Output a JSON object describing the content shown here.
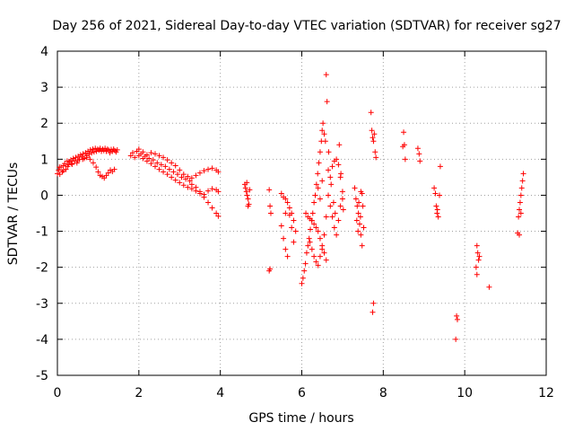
{
  "chart_data": {
    "type": "scatter",
    "title": "Day 256 of 2021, Sidereal Day-to-day VTEC variation (SDTVAR) for receiver sg27",
    "xlabel": "GPS time / hours",
    "ylabel": "SDTVAR / TECUs",
    "xlim": [
      0,
      12
    ],
    "ylim": [
      -5,
      4
    ],
    "xticks": [
      0,
      2,
      4,
      6,
      8,
      10,
      12
    ],
    "yticks": [
      -5,
      -4,
      -3,
      -2,
      -1,
      0,
      1,
      2,
      3,
      4
    ],
    "grid": true,
    "marker": "+",
    "color": "#ff0000",
    "series": [
      {
        "name": "sg27",
        "points": [
          [
            0.0,
            0.6
          ],
          [
            0.03,
            0.7
          ],
          [
            0.06,
            0.58
          ],
          [
            0.09,
            0.78
          ],
          [
            0.12,
            0.65
          ],
          [
            0.15,
            0.82
          ],
          [
            0.18,
            0.88
          ],
          [
            0.21,
            0.72
          ],
          [
            0.24,
            0.95
          ],
          [
            0.27,
            0.85
          ],
          [
            0.3,
            0.93
          ],
          [
            0.33,
            0.98
          ],
          [
            0.36,
            0.86
          ],
          [
            0.39,
            1.02
          ],
          [
            0.42,
            0.95
          ],
          [
            0.45,
            1.05
          ],
          [
            0.48,
            0.9
          ],
          [
            0.51,
            1.08
          ],
          [
            0.54,
            1.0
          ],
          [
            0.57,
            1.12
          ],
          [
            0.6,
            1.06
          ],
          [
            0.63,
            1.15
          ],
          [
            0.66,
            1.02
          ],
          [
            0.69,
            1.18
          ],
          [
            0.72,
            1.1
          ],
          [
            0.75,
            1.22
          ],
          [
            0.78,
            1.14
          ],
          [
            0.81,
            1.26
          ],
          [
            0.84,
            1.18
          ],
          [
            0.87,
            1.28
          ],
          [
            0.9,
            1.2
          ],
          [
            0.93,
            1.3
          ],
          [
            0.96,
            1.22
          ],
          [
            0.99,
            1.28
          ],
          [
            1.02,
            1.25
          ],
          [
            1.05,
            1.3
          ],
          [
            1.08,
            1.22
          ],
          [
            1.11,
            1.28
          ],
          [
            1.14,
            1.24
          ],
          [
            1.17,
            1.3
          ],
          [
            1.2,
            1.22
          ],
          [
            1.23,
            1.28
          ],
          [
            1.26,
            1.25
          ],
          [
            1.29,
            1.18
          ],
          [
            1.32,
            1.27
          ],
          [
            1.35,
            1.22
          ],
          [
            1.38,
            1.28
          ],
          [
            1.41,
            1.24
          ],
          [
            1.44,
            1.2
          ],
          [
            1.47,
            1.26
          ],
          [
            0.05,
            0.78
          ],
          [
            0.15,
            0.68
          ],
          [
            0.25,
            0.8
          ],
          [
            0.35,
            0.88
          ],
          [
            0.5,
            0.96
          ],
          [
            0.62,
            1.0
          ],
          [
            0.72,
            1.05
          ],
          [
            0.8,
            1.0
          ],
          [
            0.88,
            0.9
          ],
          [
            0.95,
            0.78
          ],
          [
            1.0,
            0.65
          ],
          [
            1.05,
            0.55
          ],
          [
            1.1,
            0.52
          ],
          [
            1.15,
            0.48
          ],
          [
            1.2,
            0.55
          ],
          [
            1.25,
            0.62
          ],
          [
            1.3,
            0.7
          ],
          [
            1.35,
            0.66
          ],
          [
            1.4,
            0.72
          ],
          [
            1.8,
            1.1
          ],
          [
            1.85,
            1.18
          ],
          [
            1.9,
            1.05
          ],
          [
            1.95,
            1.22
          ],
          [
            2.0,
            1.28
          ],
          [
            2.05,
            1.15
          ],
          [
            2.1,
            1.2
          ],
          [
            2.15,
            1.08
          ],
          [
            2.2,
            1.12
          ],
          [
            2.25,
            1.02
          ],
          [
            2.3,
            1.18
          ],
          [
            2.35,
            0.98
          ],
          [
            2.4,
            1.15
          ],
          [
            2.45,
            0.9
          ],
          [
            2.5,
            1.1
          ],
          [
            2.55,
            0.85
          ],
          [
            2.6,
            1.05
          ],
          [
            2.65,
            0.8
          ],
          [
            2.7,
            0.98
          ],
          [
            2.75,
            0.72
          ],
          [
            2.8,
            0.9
          ],
          [
            2.85,
            0.65
          ],
          [
            2.9,
            0.82
          ],
          [
            2.95,
            0.58
          ],
          [
            3.0,
            0.7
          ],
          [
            3.05,
            0.5
          ],
          [
            3.1,
            0.58
          ],
          [
            3.15,
            0.45
          ],
          [
            3.2,
            0.52
          ],
          [
            3.25,
            0.4
          ],
          [
            2.0,
            1.1
          ],
          [
            2.1,
            1.02
          ],
          [
            2.2,
            0.95
          ],
          [
            2.3,
            0.88
          ],
          [
            2.4,
            0.8
          ],
          [
            2.5,
            0.72
          ],
          [
            2.6,
            0.65
          ],
          [
            2.7,
            0.58
          ],
          [
            2.8,
            0.5
          ],
          [
            2.9,
            0.42
          ],
          [
            3.0,
            0.35
          ],
          [
            3.1,
            0.28
          ],
          [
            3.2,
            0.22
          ],
          [
            3.3,
            0.18
          ],
          [
            3.4,
            0.12
          ],
          [
            3.5,
            0.05
          ],
          [
            3.6,
            -0.05
          ],
          [
            3.7,
            -0.2
          ],
          [
            3.8,
            -0.35
          ],
          [
            3.9,
            -0.5
          ],
          [
            3.95,
            -0.58
          ],
          [
            3.3,
            0.48
          ],
          [
            3.4,
            0.55
          ],
          [
            3.5,
            0.62
          ],
          [
            3.6,
            0.68
          ],
          [
            3.7,
            0.72
          ],
          [
            3.8,
            0.75
          ],
          [
            3.9,
            0.7
          ],
          [
            3.95,
            0.65
          ],
          [
            3.3,
            0.3
          ],
          [
            3.4,
            0.22
          ],
          [
            3.5,
            0.1
          ],
          [
            3.6,
            0.02
          ],
          [
            3.7,
            0.12
          ],
          [
            3.8,
            0.18
          ],
          [
            3.9,
            0.15
          ],
          [
            3.95,
            0.1
          ],
          [
            4.6,
            0.3
          ],
          [
            4.62,
            0.2
          ],
          [
            4.64,
            0.1
          ],
          [
            4.66,
            0.0
          ],
          [
            4.68,
            -0.1
          ],
          [
            4.7,
            -0.25
          ],
          [
            4.65,
            0.35
          ],
          [
            4.72,
            0.15
          ],
          [
            4.68,
            -0.3
          ],
          [
            5.2,
            0.15
          ],
          [
            5.22,
            -0.3
          ],
          [
            5.24,
            -0.5
          ],
          [
            5.2,
            -2.1
          ],
          [
            5.22,
            -2.05
          ],
          [
            5.5,
            0.05
          ],
          [
            5.55,
            -0.05
          ],
          [
            5.6,
            -0.1
          ],
          [
            5.65,
            -0.2
          ],
          [
            5.7,
            -0.35
          ],
          [
            5.75,
            -0.5
          ],
          [
            5.8,
            -0.7
          ],
          [
            5.85,
            -1.0
          ],
          [
            5.5,
            -0.85
          ],
          [
            5.55,
            -1.2
          ],
          [
            5.6,
            -1.5
          ],
          [
            5.65,
            -1.7
          ],
          [
            5.6,
            -0.5
          ],
          [
            5.7,
            -0.55
          ],
          [
            5.75,
            -0.9
          ],
          [
            5.8,
            -1.3
          ],
          [
            6.0,
            -2.45
          ],
          [
            6.03,
            -2.3
          ],
          [
            6.06,
            -2.1
          ],
          [
            6.09,
            -1.9
          ],
          [
            6.12,
            -1.6
          ],
          [
            6.15,
            -1.4
          ],
          [
            6.18,
            -1.2
          ],
          [
            6.21,
            -0.95
          ],
          [
            6.24,
            -0.7
          ],
          [
            6.27,
            -0.5
          ],
          [
            6.3,
            -0.2
          ],
          [
            6.33,
            0.0
          ],
          [
            6.36,
            0.3
          ],
          [
            6.39,
            0.6
          ],
          [
            6.42,
            0.9
          ],
          [
            6.45,
            1.2
          ],
          [
            6.48,
            1.5
          ],
          [
            6.5,
            1.8
          ],
          [
            6.52,
            2.0
          ],
          [
            6.55,
            1.7
          ],
          [
            6.1,
            -0.5
          ],
          [
            6.15,
            -0.6
          ],
          [
            6.2,
            -0.65
          ],
          [
            6.25,
            -0.7
          ],
          [
            6.3,
            -0.8
          ],
          [
            6.35,
            -0.9
          ],
          [
            6.4,
            -1.0
          ],
          [
            6.45,
            -1.2
          ],
          [
            6.5,
            -1.4
          ],
          [
            6.55,
            -1.6
          ],
          [
            6.6,
            -1.8
          ],
          [
            6.2,
            -1.3
          ],
          [
            6.25,
            -1.5
          ],
          [
            6.3,
            -1.7
          ],
          [
            6.35,
            -1.85
          ],
          [
            6.4,
            -1.95
          ],
          [
            6.45,
            -1.7
          ],
          [
            6.5,
            -1.5
          ],
          [
            6.55,
            -1.1
          ],
          [
            6.6,
            -0.6
          ],
          [
            6.65,
            0.0
          ],
          [
            6.7,
            0.5
          ],
          [
            6.75,
            0.8
          ],
          [
            6.8,
            0.95
          ],
          [
            6.85,
            1.0
          ],
          [
            6.9,
            0.85
          ],
          [
            6.95,
            0.5
          ],
          [
            7.0,
            0.1
          ],
          [
            6.7,
            -0.3
          ],
          [
            6.75,
            -0.6
          ],
          [
            6.8,
            -0.9
          ],
          [
            6.85,
            -1.1
          ],
          [
            6.9,
            -0.7
          ],
          [
            6.95,
            -0.3
          ],
          [
            7.0,
            -0.1
          ],
          [
            6.65,
            0.7
          ],
          [
            6.72,
            0.3
          ],
          [
            6.78,
            -0.2
          ],
          [
            6.82,
            -0.5
          ],
          [
            6.6,
            3.35
          ],
          [
            6.62,
            2.6
          ],
          [
            6.58,
            1.5
          ],
          [
            6.66,
            1.2
          ],
          [
            6.92,
            1.4
          ],
          [
            6.96,
            0.6
          ],
          [
            7.02,
            -0.4
          ],
          [
            6.4,
            0.2
          ],
          [
            6.45,
            -0.1
          ],
          [
            6.5,
            0.4
          ],
          [
            7.3,
            0.2
          ],
          [
            7.33,
            -0.1
          ],
          [
            7.36,
            -0.3
          ],
          [
            7.39,
            -0.5
          ],
          [
            7.42,
            -0.8
          ],
          [
            7.45,
            -1.1
          ],
          [
            7.48,
            -1.4
          ],
          [
            7.35,
            -0.7
          ],
          [
            7.4,
            -0.2
          ],
          [
            7.45,
            0.1
          ],
          [
            7.5,
            -0.3
          ],
          [
            7.52,
            -0.9
          ],
          [
            7.38,
            -1.0
          ],
          [
            7.44,
            -0.6
          ],
          [
            7.48,
            0.05
          ],
          [
            7.7,
            2.3
          ],
          [
            7.72,
            1.8
          ],
          [
            7.74,
            1.6
          ],
          [
            7.76,
            1.5
          ],
          [
            7.78,
            1.7
          ],
          [
            7.8,
            1.2
          ],
          [
            7.82,
            1.05
          ],
          [
            7.76,
            -3.0
          ],
          [
            7.74,
            -3.25
          ],
          [
            8.5,
            1.75
          ],
          [
            8.52,
            1.4
          ],
          [
            8.54,
            1.0
          ],
          [
            8.48,
            1.35
          ],
          [
            8.85,
            1.3
          ],
          [
            8.88,
            1.15
          ],
          [
            8.9,
            0.95
          ],
          [
            9.25,
            0.2
          ],
          [
            9.28,
            0.05
          ],
          [
            9.3,
            -0.3
          ],
          [
            9.32,
            -0.5
          ],
          [
            9.35,
            -0.6
          ],
          [
            9.38,
            0.0
          ],
          [
            9.4,
            0.8
          ],
          [
            9.33,
            -0.4
          ],
          [
            9.8,
            -3.35
          ],
          [
            9.82,
            -3.45
          ],
          [
            9.78,
            -4.0
          ],
          [
            10.3,
            -1.4
          ],
          [
            10.32,
            -1.6
          ],
          [
            10.34,
            -1.8
          ],
          [
            10.28,
            -2.0
          ],
          [
            10.3,
            -2.2
          ],
          [
            10.36,
            -1.7
          ],
          [
            10.6,
            -2.55
          ],
          [
            11.3,
            -1.05
          ],
          [
            11.32,
            -0.6
          ],
          [
            11.34,
            -0.4
          ],
          [
            11.36,
            -0.2
          ],
          [
            11.38,
            0.0
          ],
          [
            11.4,
            0.2
          ],
          [
            11.42,
            0.4
          ],
          [
            11.44,
            0.6
          ],
          [
            11.34,
            -1.1
          ],
          [
            11.38,
            -0.5
          ]
        ]
      }
    ]
  }
}
